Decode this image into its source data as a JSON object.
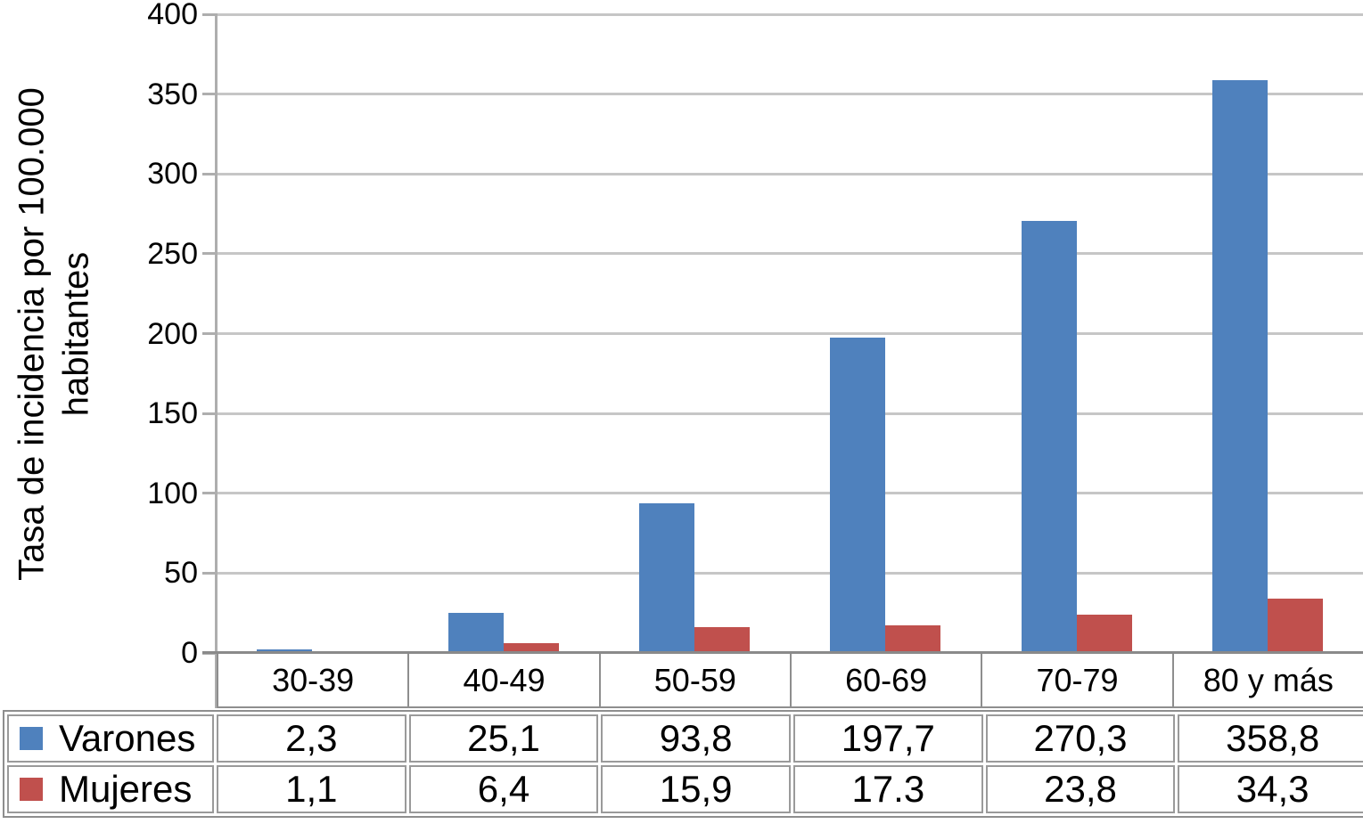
{
  "chart_data": {
    "type": "bar",
    "title": "",
    "ylabel": "Tasa de incidencia por 100.000 habitantes",
    "ylabel_lines": {
      "0": "Tasa de incidencia por 100.000",
      "1": "habitantes"
    },
    "categories": [
      "30-39",
      "40-49",
      "50-59",
      "60-69",
      "70-79",
      "80 y más"
    ],
    "series": [
      {
        "name": "Varones",
        "color": "#4F81BD",
        "values": [
          2.3,
          25.1,
          93.8,
          197.7,
          270.3,
          358.8
        ],
        "display_values": [
          "2,3",
          "25,1",
          "93,8",
          "197,7",
          "270,3",
          "358,8"
        ]
      },
      {
        "name": "Mujeres",
        "color": "#C0504D",
        "values": [
          1.1,
          6.4,
          15.9,
          17.3,
          23.8,
          34.3
        ],
        "display_values": [
          "1,1",
          "6,4",
          "15,9",
          "17.3",
          "23,8",
          "34,3"
        ]
      }
    ],
    "y_axis": {
      "min": 0,
      "max": 400,
      "step": 50,
      "tick_labels": [
        "0",
        "50",
        "100",
        "150",
        "200",
        "250",
        "300",
        "350",
        "400"
      ]
    },
    "grid": true,
    "legend_position": "table-left-of-rows",
    "colors": {
      "gridline": "#c6c6c6",
      "axis": "#aeaeae",
      "axis_bottom": "#8a8a8a",
      "table_border": "#9a9a9a",
      "text": "#000000",
      "background": "#ffffff"
    }
  }
}
